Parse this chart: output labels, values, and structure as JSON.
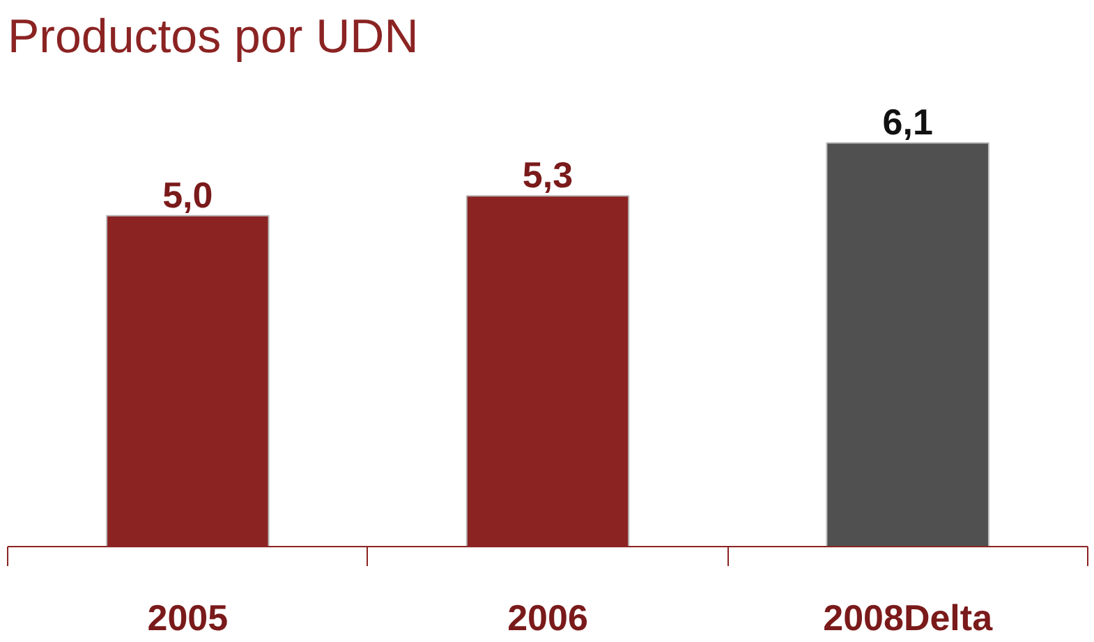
{
  "chart_data": {
    "type": "bar",
    "title": "Productos por UDN",
    "categories": [
      "2005",
      "2006",
      "2008Delta"
    ],
    "values": [
      5.0,
      5.3,
      6.1
    ],
    "value_labels": [
      "5,0",
      "5,3",
      "6,1"
    ],
    "colors": [
      "#8b2323",
      "#8b2323",
      "#505050"
    ],
    "grid": false
  }
}
